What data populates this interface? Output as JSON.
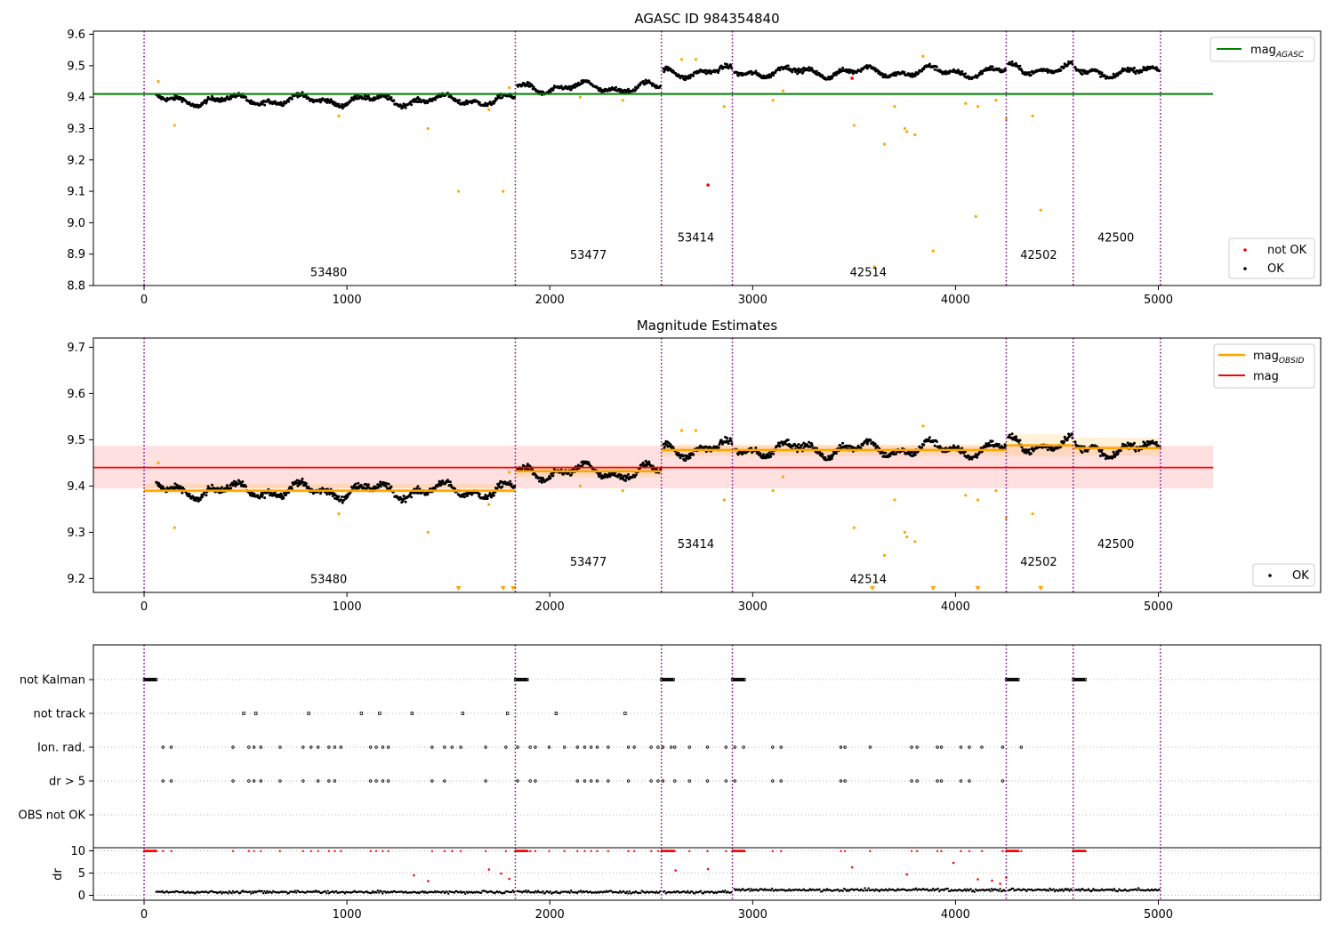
{
  "chart_data": [
    {
      "type": "scatter",
      "title": "AGASC ID 984354840",
      "xlim": [
        -250,
        5800
      ],
      "ylim": [
        8.8,
        9.61
      ],
      "xticks": [
        0,
        1000,
        2000,
        3000,
        4000,
        5000
      ],
      "yticks": [
        8.8,
        8.9,
        9.0,
        9.1,
        9.2,
        9.3,
        9.4,
        9.5,
        9.6
      ],
      "reference_line": {
        "name": "mag_AGASC",
        "value": 9.41,
        "x_range": [
          -250,
          5270
        ],
        "color": "#008000"
      },
      "obsid_boundaries": [
        0,
        1830,
        2550,
        2900,
        4250,
        4580,
        5010
      ],
      "obsid_labels": [
        {
          "text": "53480",
          "x": 910,
          "y": 8.83
        },
        {
          "text": "53477",
          "x": 2190,
          "y": 8.885
        },
        {
          "text": "53414",
          "x": 2720,
          "y": 8.94
        },
        {
          "text": "42514",
          "x": 3570,
          "y": 8.83
        },
        {
          "text": "42502",
          "x": 4410,
          "y": 8.885
        },
        {
          "text": "42500",
          "x": 4790,
          "y": 8.94
        }
      ],
      "segments": [
        {
          "x_range": [
            60,
            1830
          ],
          "mean": 9.39
        },
        {
          "x_range": [
            1840,
            2550
          ],
          "mean": 9.43
        },
        {
          "x_range": [
            2560,
            2900
          ],
          "mean": 9.48
        },
        {
          "x_range": [
            2910,
            4250
          ],
          "mean": 9.48
        },
        {
          "x_range": [
            4260,
            4580
          ],
          "mean": 9.49
        },
        {
          "x_range": [
            4590,
            5010
          ],
          "mean": 9.48
        }
      ],
      "outliers": [
        [
          70,
          9.45
        ],
        [
          150,
          9.31
        ],
        [
          960,
          9.34
        ],
        [
          1400,
          9.3
        ],
        [
          1550,
          9.1
        ],
        [
          1770,
          9.1
        ],
        [
          1700,
          9.36
        ],
        [
          1800,
          9.43
        ],
        [
          2150,
          9.4
        ],
        [
          2360,
          9.39
        ],
        [
          2650,
          9.52
        ],
        [
          2720,
          9.52
        ],
        [
          2860,
          9.37
        ],
        [
          3100,
          9.39
        ],
        [
          3150,
          9.42
        ],
        [
          3500,
          9.31
        ],
        [
          3600,
          8.86
        ],
        [
          3650,
          9.25
        ],
        [
          3700,
          9.37
        ],
        [
          3750,
          9.3
        ],
        [
          3760,
          9.29
        ],
        [
          3800,
          9.28
        ],
        [
          3840,
          9.53
        ],
        [
          3890,
          8.91
        ],
        [
          4050,
          9.38
        ],
        [
          4100,
          9.02
        ],
        [
          4110,
          9.37
        ],
        [
          4200,
          9.39
        ],
        [
          4250,
          9.33
        ],
        [
          4380,
          9.34
        ],
        [
          4420,
          9.04
        ]
      ],
      "not_ok_points": [
        [
          2780,
          9.12
        ],
        [
          3490,
          9.46
        ]
      ],
      "legend": [
        {
          "label": "mag",
          "subscript": "AGASC",
          "color": "#008000"
        },
        {
          "label": "not OK",
          "color": "#ff0000"
        },
        {
          "label": "OK",
          "color": "#000000"
        }
      ]
    },
    {
      "type": "scatter",
      "title": "Magnitude Estimates",
      "xlim": [
        -250,
        5800
      ],
      "ylim": [
        9.17,
        9.72
      ],
      "xticks": [
        0,
        1000,
        2000,
        3000,
        4000,
        5000
      ],
      "yticks": [
        9.2,
        9.3,
        9.4,
        9.5,
        9.6,
        9.7
      ],
      "mag_line": {
        "name": "mag",
        "value": 9.44,
        "band": [
          9.395,
          9.487
        ],
        "x_range": [
          -250,
          5270
        ],
        "color": "#ff0000"
      },
      "obsid_mag": [
        {
          "x_range": [
            0,
            1830
          ],
          "value": 9.39,
          "band": [
            9.383,
            9.405
          ]
        },
        {
          "x_range": [
            1830,
            2550
          ],
          "value": 9.432,
          "band": [
            9.42,
            9.445
          ]
        },
        {
          "x_range": [
            2550,
            2900
          ],
          "value": 9.478,
          "band": [
            9.465,
            9.49
          ]
        },
        {
          "x_range": [
            2900,
            4250
          ],
          "value": 9.478,
          "band": [
            9.465,
            9.49
          ]
        },
        {
          "x_range": [
            4250,
            4580
          ],
          "value": 9.488,
          "band": [
            9.465,
            9.512
          ]
        },
        {
          "x_range": [
            4580,
            5010
          ],
          "value": 9.482,
          "band": [
            9.465,
            9.505
          ]
        }
      ],
      "obsid_labels": [
        {
          "text": "53480",
          "x": 910,
          "y": 9.19
        },
        {
          "text": "53477",
          "x": 2190,
          "y": 9.228
        },
        {
          "text": "53414",
          "x": 2720,
          "y": 9.266
        },
        {
          "text": "42514",
          "x": 3570,
          "y": 9.19
        },
        {
          "text": "42502",
          "x": 4410,
          "y": 9.228
        },
        {
          "text": "42500",
          "x": 4790,
          "y": 9.266
        }
      ],
      "down_markers_x": [
        1550,
        1770,
        1820,
        3590,
        3890,
        4110,
        4420
      ],
      "legend": [
        {
          "label": "mag",
          "subscript": "OBSID",
          "color": "#ffa500"
        },
        {
          "label": "mag",
          "color": "#ff0000"
        },
        {
          "label": "OK",
          "color": "#000000"
        }
      ]
    },
    {
      "type": "scatter",
      "xlim": [
        -250,
        5800
      ],
      "xticks": [
        0,
        1000,
        2000,
        3000,
        4000,
        5000
      ],
      "flag_rows": [
        "not Kalman",
        "not track",
        "Ion. rad.",
        "dr > 5",
        "OBS not OK"
      ],
      "dr_ylim": [
        -0.5,
        10.3
      ],
      "dr_yticks": [
        0,
        5,
        10
      ],
      "dr_label": "dr",
      "not_kalman_ranges": [
        [
          0,
          60
        ],
        [
          1830,
          1890
        ],
        [
          2550,
          2610
        ],
        [
          2900,
          2960
        ],
        [
          4250,
          4310
        ],
        [
          4580,
          4640
        ]
      ],
      "not_track_x": [
        490,
        550,
        810,
        1070,
        1160,
        1320,
        1570,
        1790,
        2030,
        2370
      ],
      "dr_outliers": [
        [
          1330,
          4.5
        ],
        [
          1400,
          3.2
        ],
        [
          1700,
          5.8
        ],
        [
          1760,
          4.9
        ],
        [
          1800,
          3.7
        ],
        [
          2620,
          5.6
        ],
        [
          2780,
          5.9
        ],
        [
          3490,
          6.3
        ],
        [
          3760,
          4.7
        ],
        [
          3990,
          7.3
        ],
        [
          4110,
          3.6
        ],
        [
          4180,
          3.3
        ],
        [
          4220,
          2.6
        ],
        [
          4250,
          4.0
        ]
      ]
    }
  ]
}
